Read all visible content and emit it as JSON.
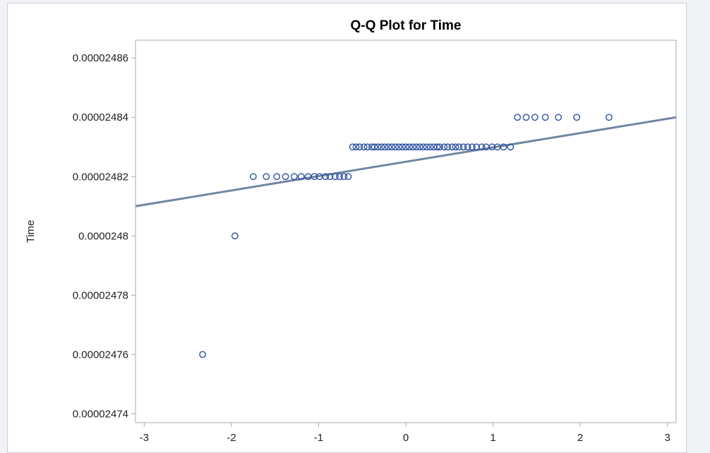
{
  "chart_data": {
    "type": "scatter",
    "title": "Q-Q Plot for Time",
    "xlabel": "",
    "ylabel": "Time",
    "xlim": [
      -3.1,
      3.1
    ],
    "ylim": [
      2.4737e-05,
      2.4866e-05
    ],
    "x_ticks": [
      -3,
      -2,
      -1,
      0,
      1,
      2,
      3
    ],
    "x_tick_labels": [
      "-3",
      "-2",
      "-1",
      "0",
      "1",
      "2",
      "3"
    ],
    "y_ticks": [
      2.474e-05,
      2.476e-05,
      2.478e-05,
      2.48e-05,
      2.482e-05,
      2.484e-05,
      2.486e-05
    ],
    "y_tick_labels": [
      "0.00002474",
      "0.00002476",
      "0.00002478",
      "0.0000248",
      "0.00002482",
      "0.00002484",
      "0.00002486"
    ],
    "grid": false,
    "reference_line": {
      "x": [
        -3.1,
        3.1
      ],
      "y": [
        2.481e-05,
        2.484e-05
      ]
    },
    "points": {
      "x": [
        -2.33,
        -1.96,
        -1.75,
        -1.6,
        -1.48,
        -1.38,
        -1.28,
        -1.2,
        -1.12,
        -1.05,
        -0.99,
        -0.92,
        -0.87,
        -0.81,
        -0.76,
        -0.71,
        -0.66,
        -0.61,
        -0.57,
        -0.53,
        -0.48,
        -0.44,
        -0.39,
        -0.36,
        -0.32,
        -0.28,
        -0.24,
        -0.2,
        -0.16,
        -0.12,
        -0.08,
        -0.04,
        0.0,
        0.04,
        0.08,
        0.12,
        0.16,
        0.2,
        0.24,
        0.28,
        0.32,
        0.36,
        0.39,
        0.44,
        0.48,
        0.53,
        0.57,
        0.61,
        0.66,
        0.71,
        0.76,
        0.81,
        0.87,
        0.92,
        0.99,
        1.05,
        1.12,
        1.2,
        1.28,
        1.38,
        1.48,
        1.6,
        1.75,
        1.96,
        2.33
      ],
      "y": [
        2.476e-05,
        2.48e-05,
        2.482e-05,
        2.482e-05,
        2.482e-05,
        2.482e-05,
        2.482e-05,
        2.482e-05,
        2.482e-05,
        2.482e-05,
        2.482e-05,
        2.482e-05,
        2.482e-05,
        2.482e-05,
        2.482e-05,
        2.482e-05,
        2.482e-05,
        2.483e-05,
        2.483e-05,
        2.483e-05,
        2.483e-05,
        2.483e-05,
        2.483e-05,
        2.483e-05,
        2.483e-05,
        2.483e-05,
        2.483e-05,
        2.483e-05,
        2.483e-05,
        2.483e-05,
        2.483e-05,
        2.483e-05,
        2.483e-05,
        2.483e-05,
        2.483e-05,
        2.483e-05,
        2.483e-05,
        2.483e-05,
        2.483e-05,
        2.483e-05,
        2.483e-05,
        2.483e-05,
        2.483e-05,
        2.483e-05,
        2.483e-05,
        2.483e-05,
        2.483e-05,
        2.483e-05,
        2.483e-05,
        2.483e-05,
        2.483e-05,
        2.483e-05,
        2.483e-05,
        2.483e-05,
        2.483e-05,
        2.483e-05,
        2.483e-05,
        2.483e-05,
        2.484e-05,
        2.484e-05,
        2.484e-05,
        2.484e-05,
        2.484e-05,
        2.484e-05,
        2.484e-05
      ]
    }
  },
  "colors": {
    "line": "#7186a4",
    "marker": "#2d51a1",
    "frame": "#a6acb7",
    "page_bg": "#f0f2f6"
  }
}
